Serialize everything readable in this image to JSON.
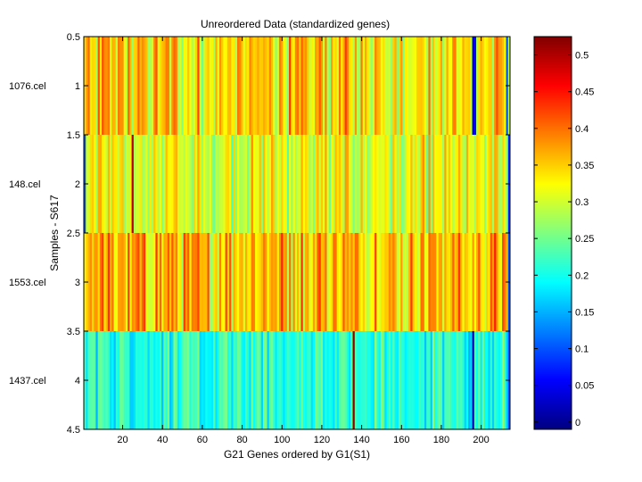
{
  "chart_data": {
    "type": "heatmap",
    "title": "Unreordered Data (standardized genes)",
    "xlabel": "G21 Genes ordered by G1(S1)",
    "ylabel": "Samples - S617",
    "rows": [
      "1076.cel",
      "148.cel",
      "1553.cel",
      "1437.cel"
    ],
    "n_columns": 214,
    "xlim": [
      0.5,
      214.5
    ],
    "ylim": [
      0.5,
      4.5
    ],
    "x_ticks": [
      20,
      40,
      60,
      80,
      100,
      120,
      140,
      160,
      180,
      200
    ],
    "y_ticks": [
      0.5,
      1,
      1.5,
      2,
      2.5,
      3,
      3.5,
      4,
      4.5
    ],
    "colorbar": {
      "colormap": "jet",
      "range": [
        -0.01,
        0.525
      ],
      "ticks": [
        0,
        0.05,
        0.1,
        0.15,
        0.2,
        0.25,
        0.3,
        0.35,
        0.4,
        0.45,
        0.5
      ]
    },
    "row_profiles": [
      {
        "row": "1076.cel",
        "mean": 0.34,
        "spread": 0.07
      },
      {
        "row": "148.cel",
        "mean": 0.31,
        "spread": 0.06
      },
      {
        "row": "1553.cel",
        "mean": 0.36,
        "spread": 0.07
      },
      {
        "row": "1437.cel",
        "mean": 0.21,
        "spread": 0.05
      }
    ],
    "notable_cells": [
      {
        "row": 1,
        "col": 196,
        "value": 0.02
      },
      {
        "row": 1,
        "col": 197,
        "value": 0.06
      },
      {
        "row": 1,
        "col": 213,
        "value": 0.1
      },
      {
        "row": 2,
        "col": 1,
        "value": 0.1
      },
      {
        "row": 2,
        "col": 25,
        "value": 0.5
      },
      {
        "row": 2,
        "col": 214,
        "value": 0.08
      },
      {
        "row": 3,
        "col": 214,
        "value": 0.1
      },
      {
        "row": 4,
        "col": 214,
        "value": 0.1
      },
      {
        "row": 4,
        "col": 136,
        "value": 0.52
      },
      {
        "row": 4,
        "col": 196,
        "value": 0.02
      }
    ]
  }
}
